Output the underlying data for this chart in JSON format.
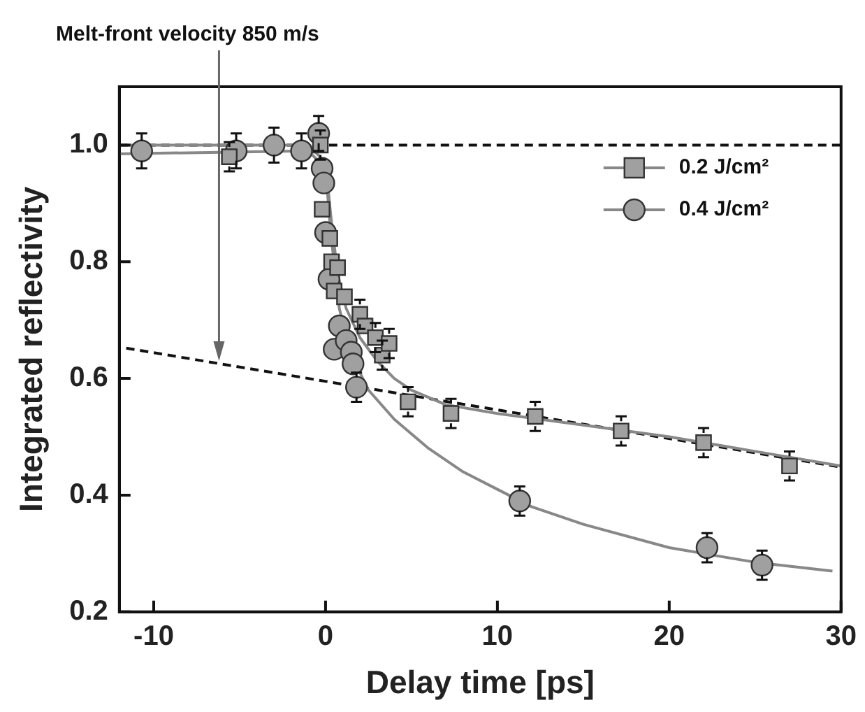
{
  "chart_data": {
    "type": "scatter",
    "xlabel": "Delay time [ps]",
    "ylabel": "Integrated reflectivity",
    "xlim": [
      -12,
      30
    ],
    "xticks": [
      -10,
      0,
      10,
      20,
      30
    ],
    "ylim": [
      0.2,
      1.1
    ],
    "yticks": [
      0.2,
      0.4,
      0.6,
      0.8,
      {
        "value": 1,
        "label": "1.0"
      }
    ],
    "grid": false,
    "legend": "top right",
    "series": [
      {
        "name": "0.2 J/cm²",
        "type": "scatter",
        "marker": "square",
        "color": "#a0a0a0",
        "x": [
          -5.6,
          -0.3,
          -0.2,
          0.25,
          0.35,
          0.7,
          0.5,
          1.1,
          2.0,
          2.3,
          2.9,
          3.3,
          3.7,
          4.8,
          7.3,
          12.2,
          17.2,
          22.0,
          27.0
        ],
        "values": [
          0.98,
          1.0,
          0.89,
          0.84,
          0.8,
          0.79,
          0.75,
          0.74,
          0.71,
          0.69,
          0.67,
          0.64,
          0.66,
          0.56,
          0.54,
          0.535,
          0.51,
          0.49,
          0.45
        ],
        "errors": [
          0.025,
          0.025,
          null,
          null,
          null,
          null,
          null,
          null,
          0.025,
          null,
          0.025,
          0.025,
          0.025,
          0.025,
          0.025,
          0.025,
          0.025,
          0.025,
          0.025
        ]
      },
      {
        "name": "0.4 J/cm²",
        "type": "scatter",
        "marker": "circle",
        "color": "#a0a0a0",
        "x": [
          -10.7,
          -5.2,
          -3.0,
          -1.4,
          -0.4,
          -0.2,
          -0.1,
          0.0,
          0.2,
          0.8,
          0.5,
          1.2,
          1.5,
          1.6,
          1.8,
          11.3,
          22.2,
          25.4
        ],
        "values": [
          0.99,
          0.99,
          1.0,
          0.99,
          1.02,
          0.96,
          0.935,
          0.85,
          0.77,
          0.69,
          0.65,
          0.665,
          0.645,
          0.625,
          0.585,
          0.39,
          0.31,
          0.28
        ],
        "errors": [
          0.03,
          0.03,
          0.03,
          0.03,
          0.03,
          null,
          null,
          null,
          null,
          null,
          null,
          null,
          null,
          null,
          0.025,
          0.025,
          0.025,
          0.025
        ]
      },
      {
        "type": "line",
        "color": "#888888",
        "line_style": "solid",
        "x": [
          -12,
          -1,
          0,
          0.3,
          0.7,
          1.2,
          2,
          3,
          4,
          5,
          7,
          10,
          15,
          20,
          25,
          30
        ],
        "values": [
          1.0,
          1.0,
          0.97,
          0.88,
          0.78,
          0.72,
          0.67,
          0.63,
          0.6,
          0.58,
          0.555,
          0.54,
          0.52,
          0.5,
          0.475,
          0.45
        ]
      },
      {
        "type": "line",
        "color": "#888888",
        "line_style": "solid",
        "x": [
          -12,
          -1,
          0,
          0.3,
          0.8,
          1.5,
          2.5,
          4,
          6,
          8,
          10,
          12,
          15,
          20,
          25,
          29.5
        ],
        "values": [
          0.985,
          0.99,
          0.96,
          0.85,
          0.72,
          0.64,
          0.58,
          0.53,
          0.48,
          0.44,
          0.41,
          0.38,
          0.35,
          0.31,
          0.285,
          0.27
        ]
      },
      {
        "type": "line",
        "color": "#111111",
        "line_style": "dashed",
        "x": [
          -11.6,
          30
        ],
        "values": [
          0.652,
          0.448
        ]
      }
    ],
    "ref_lines": [
      {
        "axis": "y",
        "value": 1,
        "color": "#111111",
        "line_style": "dashed"
      }
    ],
    "annotations": [
      {
        "text": "Melt-front velocity 850 m/s",
        "x": -6.2,
        "y": 0.63
      }
    ]
  }
}
